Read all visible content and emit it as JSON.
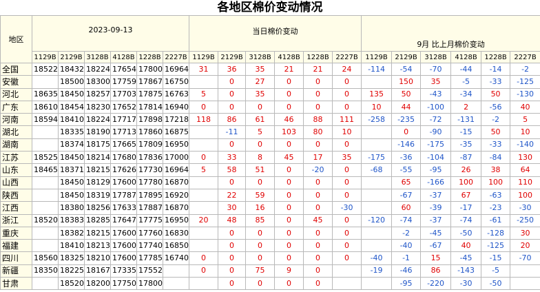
{
  "title": "各地区棉价变动情况",
  "table": {
    "region_header": "地区",
    "groups": [
      "2023-09-13",
      "当日棉价变动",
      "9月 比上月棉价变动"
    ],
    "codes": [
      "1129B",
      "2129B",
      "3128B",
      "4128B",
      "1228B",
      "2227B"
    ],
    "rows": [
      [
        "全国",
        18522,
        18432,
        18224,
        17654,
        17800,
        16964,
        31,
        36,
        35,
        21,
        21,
        24,
        -114,
        -54,
        -70,
        -44,
        -14,
        -2
      ],
      [
        "安徽",
        null,
        18500,
        18300,
        17759,
        17867,
        16750,
        null,
        0,
        27,
        0,
        0,
        0,
        null,
        150,
        35,
        -5,
        -33,
        -125
      ],
      [
        "河北",
        18635,
        18450,
        18257,
        17703,
        17875,
        16763,
        5,
        0,
        35,
        0,
        0,
        0,
        135,
        50,
        -43,
        -34,
        50,
        -130
      ],
      [
        "广东",
        18610,
        18454,
        18230,
        17652,
        17814,
        16940,
        0,
        0,
        0,
        0,
        0,
        0,
        10,
        44,
        -100,
        2,
        -56,
        40
      ],
      [
        "河南",
        18594,
        18410,
        18224,
        17717,
        17898,
        17218,
        118,
        86,
        61,
        46,
        88,
        111,
        -258,
        -235,
        -72,
        -131,
        -2,
        5
      ],
      [
        "湖北",
        null,
        18335,
        18190,
        17713,
        17860,
        16875,
        null,
        -11,
        5,
        103,
        80,
        10,
        null,
        0,
        -90,
        -15,
        50,
        10
      ],
      [
        "湖南",
        null,
        18374,
        18175,
        17665,
        17809,
        16950,
        null,
        0,
        0,
        0,
        0,
        0,
        null,
        -146,
        -175,
        -35,
        -33,
        -140
      ],
      [
        "江苏",
        18525,
        18450,
        18214,
        17680,
        17836,
        17000,
        0,
        33,
        8,
        45,
        17,
        35,
        -175,
        -36,
        -104,
        -87,
        -84,
        130
      ],
      [
        "山东",
        18465,
        18371,
        18215,
        17626,
        17730,
        16964,
        5,
        58,
        51,
        0,
        -20,
        0,
        -68,
        -55,
        -95,
        26,
        38,
        64
      ],
      [
        "山西",
        null,
        18450,
        18129,
        17600,
        17780,
        16870,
        null,
        0,
        0,
        0,
        0,
        0,
        null,
        65,
        -166,
        100,
        100,
        110
      ],
      [
        "陕西",
        null,
        18450,
        18319,
        17787,
        17895,
        16920,
        null,
        22,
        59,
        0,
        0,
        0,
        null,
        -67,
        -37,
        67,
        -63,
        100
      ],
      [
        "江西",
        null,
        18380,
        18256,
        17633,
        17887,
        16870,
        null,
        30,
        16,
        0,
        0,
        -30,
        null,
        60,
        -39,
        -17,
        -23,
        -30
      ],
      [
        "浙江",
        18520,
        18383,
        18285,
        17647,
        17775,
        16950,
        20,
        48,
        85,
        0,
        45,
        0,
        -120,
        -74,
        -37,
        -74,
        -61,
        -250
      ],
      [
        "重庆",
        null,
        18382,
        18215,
        17600,
        17760,
        16830,
        null,
        0,
        0,
        0,
        0,
        0,
        null,
        -2,
        -45,
        -50,
        -128,
        30
      ],
      [
        "福建",
        null,
        18410,
        18213,
        17600,
        17740,
        16850,
        null,
        0,
        0,
        0,
        0,
        0,
        null,
        -40,
        -67,
        40,
        -125,
        20
      ],
      [
        "四川",
        18560,
        18325,
        18210,
        17600,
        17785,
        16740,
        0,
        0,
        0,
        0,
        0,
        0,
        -40,
        -1,
        15,
        -45,
        -15,
        -70
      ],
      [
        "新疆",
        18350,
        18225,
        18167,
        17335,
        17552,
        null,
        0,
        0,
        75,
        9,
        0,
        null,
        -19,
        -46,
        86,
        -143,
        -5,
        null
      ],
      [
        "甘肃",
        null,
        18520,
        18200,
        17750,
        17800,
        null,
        null,
        0,
        0,
        0,
        0,
        null,
        null,
        -95,
        -220,
        -30,
        -50,
        null
      ]
    ]
  }
}
